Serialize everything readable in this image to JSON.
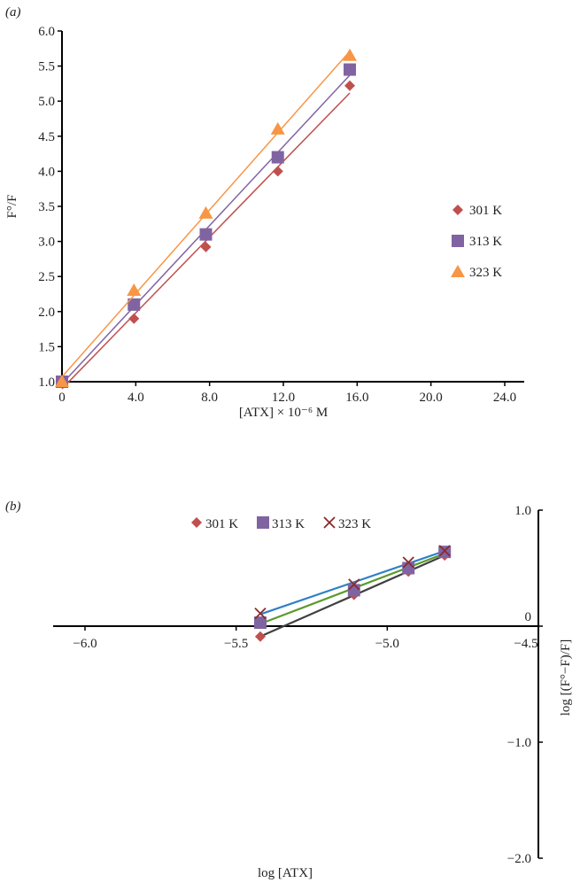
{
  "chart_data": [
    {
      "type": "scatter",
      "title": "(a)",
      "xlabel": "[ATX] × 10⁻⁶ M",
      "ylabel": "F°/F",
      "xlim": [
        0,
        24
      ],
      "ylim": [
        1.0,
        6.0
      ],
      "xticks": [
        "0",
        "4.0",
        "8.0",
        "12.0",
        "16.0",
        "20.0",
        "24.0"
      ],
      "yticks": [
        "1.0",
        "1.5",
        "2.0",
        "2.5",
        "3.0",
        "3.5",
        "4.0",
        "4.5",
        "5.0",
        "5.5",
        "6.0"
      ],
      "legend_position": "right",
      "x": [
        0,
        3.9,
        7.8,
        11.7,
        15.6
      ],
      "series": [
        {
          "name": "301 K",
          "marker": "diamond",
          "color": "#c0504d",
          "values": [
            1.0,
            1.9,
            2.92,
            4.0,
            5.22
          ]
        },
        {
          "name": "313 K",
          "marker": "square",
          "color": "#8064a2",
          "values": [
            1.0,
            2.1,
            3.1,
            4.2,
            5.45
          ]
        },
        {
          "name": "323 K",
          "marker": "triangle",
          "color": "#f79646",
          "values": [
            1.0,
            2.3,
            3.4,
            4.6,
            5.65
          ]
        }
      ]
    },
    {
      "type": "scatter",
      "title": "(b)",
      "xlabel": "log [ATX]",
      "ylabel": "log [(F°−F)/F]",
      "xlim": [
        -6.0,
        -4.5
      ],
      "ylim": [
        -2.0,
        1.0
      ],
      "xticks": [
        "−6.0",
        "−5.5",
        "−5.0",
        "−4.5"
      ],
      "yticks": [
        "1.0",
        "0",
        "−1.0",
        "−2.0"
      ],
      "legend_position": "top",
      "x": [
        -5.42,
        -5.11,
        -4.93,
        -4.81
      ],
      "series": [
        {
          "name": "301 K",
          "marker": "diamond",
          "color": "#c0504d",
          "line_color": "#404040",
          "values": [
            -0.09,
            0.27,
            0.47,
            0.61
          ]
        },
        {
          "name": "313 K",
          "marker": "square",
          "color": "#8064a2",
          "line_color": "#5a9a2c",
          "values": [
            0.03,
            0.31,
            0.5,
            0.64
          ]
        },
        {
          "name": "323 K",
          "marker": "cross",
          "color": "#8b2a2a",
          "line_color": "#2f7fc8",
          "values": [
            0.11,
            0.36,
            0.55,
            0.65
          ]
        }
      ]
    }
  ]
}
